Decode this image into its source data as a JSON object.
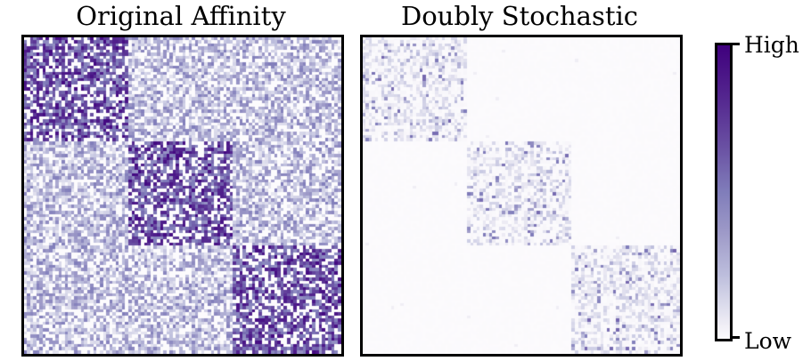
{
  "chart_data": [
    {
      "type": "heatmap",
      "title": "Original Affinity",
      "matrix_size": 100,
      "blocks": [
        {
          "rows": [
            0,
            33
          ],
          "cols": [
            0,
            33
          ],
          "level": "high"
        },
        {
          "rows": [
            33,
            66
          ],
          "cols": [
            33,
            66
          ],
          "level": "high"
        },
        {
          "rows": [
            66,
            100
          ],
          "cols": [
            66,
            100
          ],
          "level": "high"
        }
      ],
      "in_block_mean": 0.75,
      "off_block_mean": 0.4,
      "sparsity": 0.3
    },
    {
      "type": "heatmap",
      "title": "Doubly Stochastic",
      "matrix_size": 100,
      "blocks": [
        {
          "rows": [
            0,
            33
          ],
          "cols": [
            0,
            33
          ],
          "level": "high"
        },
        {
          "rows": [
            33,
            66
          ],
          "cols": [
            33,
            66
          ],
          "level": "high"
        },
        {
          "rows": [
            66,
            100
          ],
          "cols": [
            66,
            100
          ],
          "level": "high"
        }
      ],
      "in_block_mean": 0.12,
      "off_block_mean": 0.01
    }
  ],
  "colorbar": {
    "colormap": "Purples",
    "high_label": "High",
    "low_label": "Low",
    "colors": [
      "#fcfbfd",
      "#efedf5",
      "#dadaeb",
      "#bcbddc",
      "#9e9ac8",
      "#807dba",
      "#6a51a3",
      "#54278f",
      "#3f007d"
    ]
  }
}
